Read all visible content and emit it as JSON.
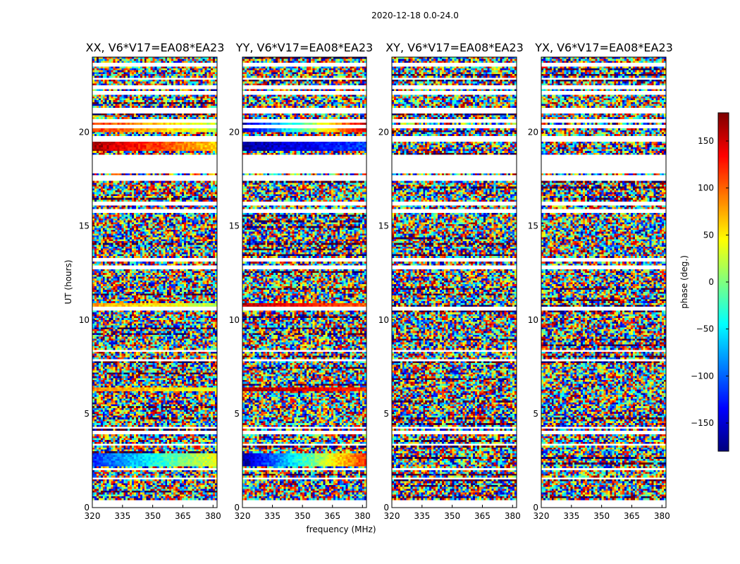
{
  "figure_title": "2020-12-18 0.0-24.0",
  "chart_data": {
    "type": "heatmap",
    "description_panels": "Visibility phase waterfall plots, one panel per correlation product",
    "xlabel": "frequency (MHz)",
    "ylabel": "UT (hours)",
    "xlim": [
      320,
      382
    ],
    "ylim": [
      0,
      24
    ],
    "xticks": [
      320,
      335,
      350,
      365,
      380
    ],
    "yticks": [
      0,
      5,
      10,
      15,
      20
    ],
    "colorbar": {
      "label": "phase (deg.)",
      "range": [
        -180,
        180
      ],
      "ticks": [
        -150,
        -100,
        -50,
        0,
        50,
        100,
        150
      ],
      "colormap": "jet",
      "colors": [
        "#00007f",
        "#0000ff",
        "#007fff",
        "#00ffff",
        "#7fff7f",
        "#ffff00",
        "#ff7f00",
        "#ff0000",
        "#7f0000"
      ]
    },
    "flagged_time_ranges_hours": [
      [
        0.0,
        0.35
      ],
      [
        1.45,
        1.6
      ],
      [
        2.0,
        2.1
      ],
      [
        3.3,
        3.4
      ],
      [
        3.9,
        4.1
      ],
      [
        4.25,
        4.35
      ],
      [
        7.8,
        7.9
      ],
      [
        8.3,
        8.4
      ],
      [
        9.35,
        9.45
      ],
      [
        10.55,
        10.7
      ],
      [
        12.7,
        12.85
      ],
      [
        13.15,
        13.25
      ],
      [
        15.75,
        15.85
      ],
      [
        16.1,
        16.25
      ],
      [
        17.4,
        17.7
      ],
      [
        17.8,
        18.75
      ],
      [
        19.55,
        19.75
      ],
      [
        20.2,
        20.35
      ],
      [
        20.5,
        20.65
      ],
      [
        21.05,
        21.25
      ],
      [
        22.05,
        22.15
      ],
      [
        22.3,
        22.45
      ],
      [
        22.8,
        22.9
      ],
      [
        23.5,
        23.65
      ]
    ],
    "panels": [
      {
        "title": "XX, V6*V17=EA08*EA23",
        "coherent_bands": [
          {
            "t": [
              20.0,
              20.6
            ],
            "phase_start": 120,
            "phase_end": 20
          },
          {
            "t": [
              19.0,
              19.45
            ],
            "phase_start": 170,
            "phase_end": 60
          },
          {
            "t": [
              10.7,
              10.95
            ],
            "phase_start": 80,
            "phase_end": 20
          },
          {
            "t": [
              6.15,
              6.45
            ],
            "phase_start": 90,
            "phase_end": 30
          },
          {
            "t": [
              2.2,
              2.9
            ],
            "phase_start": -120,
            "phase_end": 40
          }
        ]
      },
      {
        "title": "YY, V6*V17=EA08*EA23",
        "coherent_bands": [
          {
            "t": [
              20.0,
              20.6
            ],
            "phase_start": -160,
            "phase_end": 150
          },
          {
            "t": [
              19.0,
              19.45
            ],
            "phase_start": -170,
            "phase_end": -110
          },
          {
            "t": [
              10.7,
              10.95
            ],
            "phase_start": 160,
            "phase_end": 100
          },
          {
            "t": [
              6.15,
              6.45
            ],
            "phase_start": 170,
            "phase_end": 120
          },
          {
            "t": [
              2.2,
              2.9
            ],
            "phase_start": -170,
            "phase_end": 120
          }
        ]
      },
      {
        "title": "XY, V6*V17=EA08*EA23",
        "coherent_bands": []
      },
      {
        "title": "YX, V6*V17=EA08*EA23",
        "coherent_bands": []
      }
    ]
  }
}
